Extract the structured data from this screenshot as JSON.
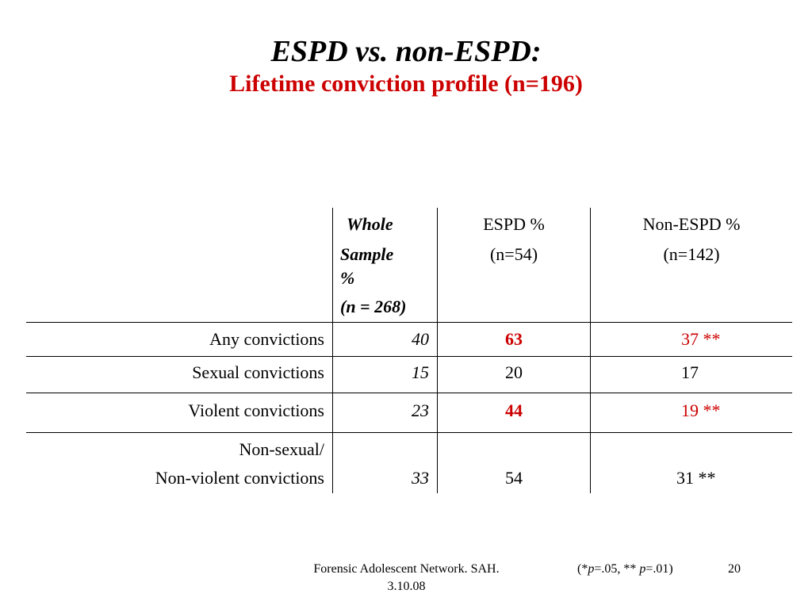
{
  "title": "ESPD vs. non-ESPD:",
  "subtitle": "Lifetime conviction profile (n=196)",
  "colors": {
    "accent": "#cc0000",
    "text": "#000000",
    "background": "#ffffff"
  },
  "table": {
    "headers": {
      "whole": {
        "line1": "Whole",
        "line2": "Sample",
        "line3": "%",
        "line4": "(n = 268)"
      },
      "espd": {
        "line1": "ESPD %",
        "line2": "(n=54)"
      },
      "non_espd": {
        "line1": "Non-ESPD %",
        "line2": "(n=142)"
      }
    },
    "rows": [
      {
        "label": "Any convictions",
        "whole": "40",
        "espd": "63",
        "non_espd": "37 **"
      },
      {
        "label": "Sexual convictions",
        "whole": "15",
        "espd": "20",
        "non_espd": "17"
      },
      {
        "label": "Violent convictions",
        "whole": "23",
        "espd": "44",
        "non_espd": "19 **"
      },
      {
        "label_line1": "Non-sexual/",
        "label_line2": "Non-violent convictions",
        "whole": "33",
        "espd": "54",
        "non_espd": "31 **"
      }
    ]
  },
  "footer": {
    "source_line1": "Forensic Adolescent Network. SAH.",
    "source_line2": "3.10.08",
    "significance_open": "(*",
    "p_symbol_1": "p",
    "sig1_value": "=.05, ** ",
    "p_symbol_2": "p",
    "sig2_value": "=.01)",
    "page_number": "20"
  }
}
